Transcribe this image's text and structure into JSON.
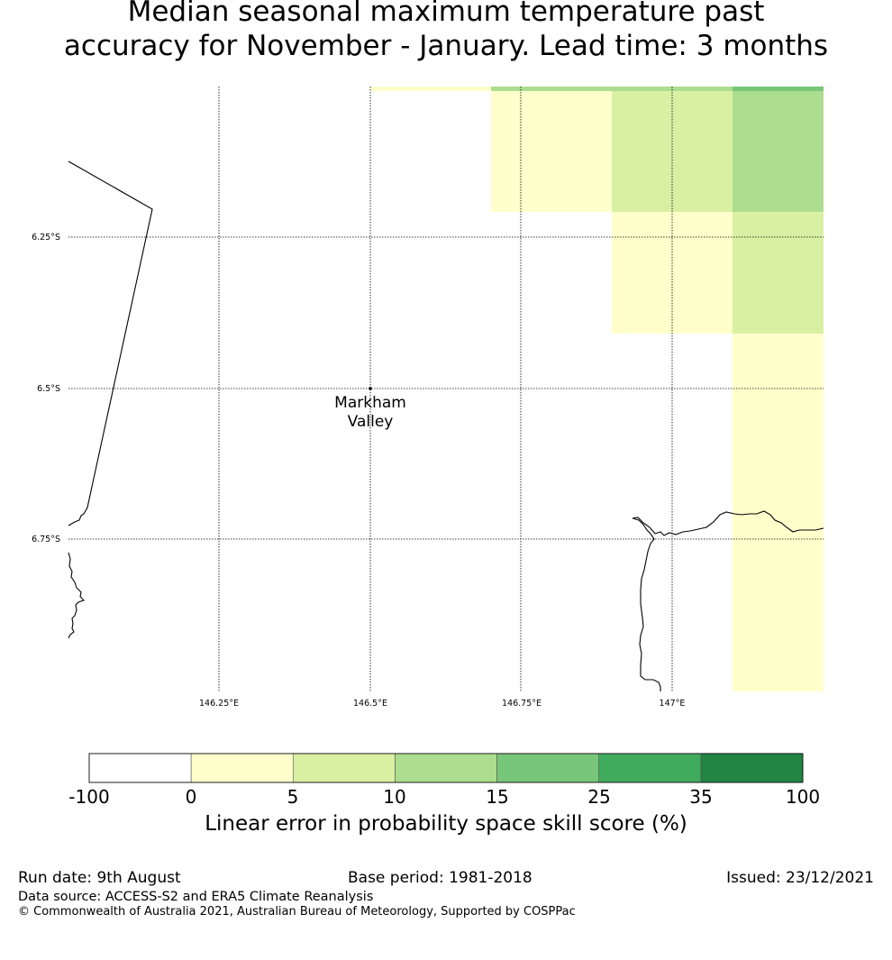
{
  "title": {
    "line1": "Median seasonal maximum temperature past",
    "line2": "accuracy for November - January. Lead time: 3 months"
  },
  "map": {
    "lat_labels": [
      "6.25°S",
      "6.5°S",
      "6.75°S"
    ],
    "lon_labels": [
      "146.25°E",
      "146.5°E",
      "146.75°E",
      "147°E"
    ],
    "location": {
      "name_line1": "Markham",
      "name_line2": "Valley"
    }
  },
  "colorbar": {
    "tick_labels": [
      "-100",
      "0",
      "5",
      "10",
      "15",
      "25",
      "35",
      "100"
    ],
    "colors": [
      "#ffffff",
      "#ffffcc",
      "#d9f0a3",
      "#addd8e",
      "#78c679",
      "#41ab5d",
      "#238443"
    ],
    "title": "Linear error in probability space skill score (%)"
  },
  "footer": {
    "run_date": "Run date: 9th August",
    "base_period": "Base period: 1981-2018",
    "issued": "Issued: 23/12/2021",
    "data_source": "Data source: ACCESS-S2 and ERA5 Climate Reanalysis",
    "copyright": "© Commonwealth of Australia 2021, Australian Bureau of Meteorology, Supported by COSPPac"
  }
}
